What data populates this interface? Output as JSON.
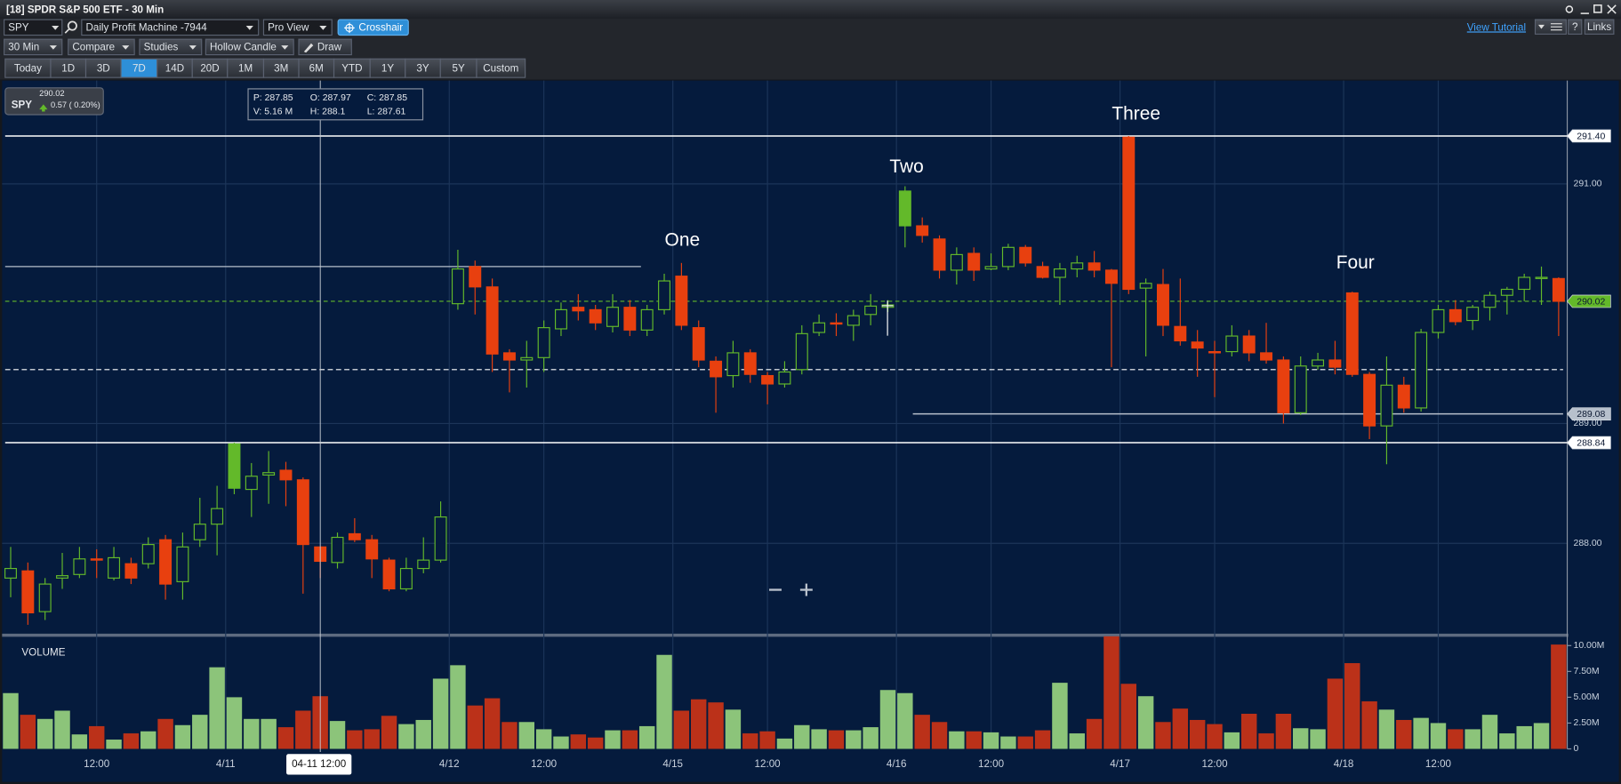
{
  "window": {
    "title": "[18] SPDR S&P 500 ETF - 30 Min"
  },
  "toolbar": {
    "symbol": "SPY",
    "layout": "Daily Profit Machine -7944",
    "view": "Pro View",
    "cursor_mode": "Crosshair",
    "tutorial": "View Tutorial",
    "help": "?",
    "links": "Links",
    "interval": "30 Min",
    "compare": "Compare",
    "studies": "Studies",
    "chart_style": "Hollow Candle",
    "draw": "Draw",
    "ranges": [
      "Today",
      "1D",
      "3D",
      "7D",
      "14D",
      "20D",
      "1M",
      "3M",
      "6M",
      "YTD",
      "1Y",
      "3Y",
      "5Y",
      "Custom"
    ],
    "active_range": 3
  },
  "quote": {
    "price": "290.02",
    "symbol": "SPY",
    "change": "0.57 ( 0.20%)"
  },
  "info": {
    "p": "P: 287.85",
    "o": "O: 287.97",
    "c": "C: 287.85",
    "v": "V: 5.16 M",
    "h": "H: 288.1",
    "l": "L: 287.61"
  },
  "crosshair_time": "04-11 12:00",
  "chart_data": [
    {
      "type": "candlestick",
      "open": [
        287.71,
        287.77,
        287.43,
        287.71,
        287.74,
        287.87,
        287.71,
        287.83,
        287.83,
        288.03,
        287.68,
        288.03,
        288.16,
        288.83,
        288.45,
        288.57,
        288.61,
        288.53,
        287.97,
        287.84,
        288.08,
        288.03,
        287.86,
        287.62,
        287.79,
        287.86,
        290.0,
        290.31,
        290.14,
        289.59,
        289.53,
        289.55,
        289.79,
        289.97,
        289.95,
        289.81,
        289.97,
        289.78,
        289.95,
        290.23,
        289.8,
        289.52,
        289.4,
        289.59,
        289.4,
        289.33,
        289.45,
        289.76,
        289.84,
        289.82,
        289.91,
        289.97,
        290.94,
        290.65,
        290.54,
        290.28,
        290.42,
        290.29,
        290.31,
        290.47,
        290.31,
        290.22,
        290.29,
        290.34,
        290.28,
        291.39,
        290.13,
        290.16,
        289.81,
        289.68,
        289.6,
        289.6,
        289.73,
        289.59,
        289.53,
        289.09,
        289.48,
        289.53,
        290.09,
        289.41,
        288.98,
        289.32,
        289.13,
        289.76,
        289.95,
        289.86,
        289.97,
        290.07,
        290.12,
        290.21,
        290.21
      ],
      "high": [
        287.97,
        287.84,
        287.71,
        287.92,
        287.97,
        287.95,
        287.97,
        287.88,
        288.05,
        288.07,
        288.09,
        288.38,
        288.48,
        288.84,
        288.67,
        288.77,
        288.68,
        288.55,
        287.97,
        288.09,
        288.21,
        288.07,
        287.88,
        287.88,
        288.05,
        288.35,
        290.45,
        290.36,
        290.21,
        289.62,
        289.69,
        289.86,
        290.01,
        290.08,
        289.99,
        290.08,
        290.03,
        289.99,
        290.25,
        290.34,
        289.86,
        289.56,
        289.69,
        289.62,
        289.43,
        289.52,
        289.82,
        289.91,
        289.92,
        289.95,
        290.08,
        290.03,
        290.98,
        290.72,
        290.57,
        290.47,
        290.47,
        290.42,
        290.5,
        290.49,
        290.35,
        290.34,
        290.4,
        290.44,
        290.29,
        291.4,
        290.21,
        290.29,
        290.21,
        289.78,
        289.69,
        289.82,
        289.78,
        289.84,
        289.56,
        289.56,
        289.59,
        289.69,
        290.1,
        289.43,
        289.56,
        289.39,
        289.79,
        289.99,
        290.03,
        289.99,
        290.1,
        290.14,
        290.25,
        290.31,
        290.22
      ],
      "low": [
        287.55,
        287.32,
        287.36,
        287.62,
        287.71,
        287.71,
        287.69,
        287.66,
        287.79,
        287.53,
        287.53,
        287.97,
        287.9,
        288.41,
        288.22,
        288.33,
        288.31,
        287.58,
        287.71,
        287.79,
        288.01,
        287.71,
        287.6,
        287.6,
        287.75,
        287.84,
        289.95,
        289.91,
        289.43,
        289.26,
        289.3,
        289.43,
        289.73,
        289.86,
        289.78,
        289.76,
        289.73,
        289.73,
        289.91,
        289.78,
        289.47,
        289.09,
        289.3,
        289.34,
        289.16,
        289.3,
        289.41,
        289.73,
        289.73,
        289.69,
        289.82,
        289.93,
        290.47,
        290.51,
        290.21,
        290.16,
        290.19,
        290.28,
        290.28,
        290.31,
        290.21,
        289.99,
        290.22,
        290.22,
        289.47,
        290.08,
        289.56,
        289.73,
        289.65,
        289.39,
        289.22,
        289.56,
        289.52,
        289.5,
        289.0,
        289.07,
        289.45,
        289.41,
        289.39,
        288.87,
        288.66,
        289.09,
        289.1,
        289.71,
        289.82,
        289.78,
        289.86,
        289.91,
        290.02,
        289.99,
        289.73
      ],
      "close": [
        287.79,
        287.42,
        287.66,
        287.73,
        287.87,
        287.86,
        287.88,
        287.71,
        287.99,
        287.66,
        287.97,
        288.16,
        288.29,
        288.46,
        288.56,
        288.59,
        288.53,
        287.99,
        287.85,
        288.05,
        288.03,
        287.87,
        287.62,
        287.79,
        287.86,
        288.22,
        290.29,
        290.14,
        289.58,
        289.53,
        289.55,
        289.8,
        289.95,
        289.94,
        289.84,
        289.97,
        289.78,
        289.95,
        290.19,
        289.82,
        289.53,
        289.39,
        289.59,
        289.41,
        289.33,
        289.43,
        289.75,
        289.84,
        289.83,
        289.9,
        289.98,
        289.99,
        290.65,
        290.57,
        290.28,
        290.41,
        290.28,
        290.31,
        290.47,
        290.34,
        290.22,
        290.29,
        290.34,
        290.28,
        290.17,
        290.12,
        290.17,
        289.82,
        289.69,
        289.63,
        289.59,
        289.73,
        289.59,
        289.53,
        289.09,
        289.48,
        289.53,
        289.47,
        289.41,
        288.98,
        289.32,
        289.13,
        289.76,
        289.95,
        289.85,
        289.97,
        290.07,
        290.12,
        290.22,
        290.22,
        290.02
      ],
      "up_color": "#63b92a",
      "down_color": "#e8400f",
      "background": "#051b3d",
      "xlim": [
        -0.5,
        90.5
      ],
      "xticks": [
        {
          "value": 5,
          "label": "12:00"
        },
        {
          "value": 12.5,
          "label": "4/11"
        },
        {
          "value": 25.5,
          "label": "4/12"
        },
        {
          "value": 31,
          "label": "12:00"
        },
        {
          "value": 38.5,
          "label": "4/15"
        },
        {
          "value": 44,
          "label": "12:00"
        },
        {
          "value": 51.5,
          "label": "4/16"
        },
        {
          "value": 57,
          "label": "12:00"
        },
        {
          "value": 64.5,
          "label": "4/17"
        },
        {
          "value": 70,
          "label": "12:00"
        },
        {
          "value": 77.5,
          "label": "4/18"
        },
        {
          "value": 83,
          "label": "12:00"
        }
      ],
      "ylim": [
        287.25,
        291.845
      ],
      "yticks": [
        {
          "value": 288,
          "label": "288.00"
        },
        {
          "value": 289,
          "label": "289.00"
        },
        {
          "value": 291,
          "label": "291.00"
        }
      ],
      "grid": true,
      "annotations": [
        "One",
        "Two",
        "Three",
        "Four"
      ],
      "levels": [
        {
          "value": 291.4,
          "label": "291.40",
          "color": "#ffffff"
        },
        {
          "value": 290.02,
          "label": "290.02",
          "color": "#63b92a",
          "dash": true
        },
        {
          "value": 289.08,
          "label": "289.08",
          "color": "#b7c0cc"
        },
        {
          "value": 288.84,
          "label": "288.84",
          "color": "#ffffff"
        }
      ],
      "lines": [
        {
          "value": 290.31,
          "color": "#b7c0cc"
        },
        {
          "value": 289.45,
          "color": "#ffffff",
          "dash": true
        }
      ]
    },
    {
      "type": "bar",
      "title": "VOLUME",
      "values": [
        5.4,
        3.3,
        2.9,
        3.7,
        1.4,
        2.2,
        0.9,
        1.5,
        1.7,
        2.9,
        2.3,
        3.3,
        7.9,
        5.0,
        2.9,
        2.9,
        2.1,
        3.7,
        5.1,
        2.7,
        1.8,
        1.9,
        3.2,
        2.4,
        2.8,
        6.8,
        8.1,
        4.2,
        4.9,
        2.6,
        2.6,
        1.9,
        1.2,
        1.4,
        1.1,
        1.8,
        1.8,
        2.2,
        9.1,
        3.7,
        4.8,
        4.5,
        3.8,
        1.5,
        1.7,
        1.0,
        2.3,
        1.9,
        1.8,
        1.8,
        2.1,
        5.7,
        5.4,
        3.3,
        2.6,
        1.7,
        1.7,
        1.6,
        1.2,
        1.2,
        1.8,
        6.4,
        1.5,
        2.9,
        10.9,
        6.3,
        5.1,
        2.6,
        3.9,
        2.8,
        2.4,
        1.6,
        3.4,
        1.5,
        3.4,
        2.0,
        1.9,
        6.8,
        8.3,
        4.6,
        3.8,
        2.8,
        3.0,
        2.5,
        1.9,
        1.9,
        3.3,
        1.5,
        2.2,
        2.5,
        10.1
      ],
      "up_color": "#8cc47a",
      "down_color": "#bb3119",
      "ylim": [
        0,
        10.7
      ],
      "yticks": [
        {
          "value": 10,
          "label": "10.00M"
        },
        {
          "value": 7.5,
          "label": "7.50M"
        },
        {
          "value": 5,
          "label": "5.00M"
        },
        {
          "value": 2.5,
          "label": "2.50M"
        },
        0
      ]
    }
  ]
}
